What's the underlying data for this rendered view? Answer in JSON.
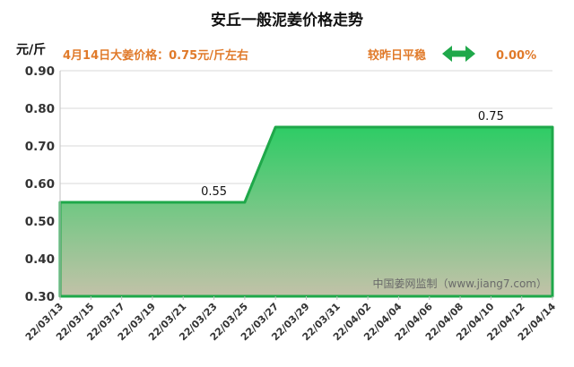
{
  "chart_data": {
    "type": "area",
    "title": "安丘一般泥姜价格走势",
    "ylabel": "元/斤",
    "xlabel": "",
    "info_left": "4月14日大姜价格：0.75元/斤左右",
    "info_right_label": "较昨日平稳",
    "info_right_value": "0.00%",
    "watermark": "中国姜网监制（www.jiang7.com）",
    "ylim": [
      0.3,
      0.9
    ],
    "yticks": [
      "0.30",
      "0.40",
      "0.50",
      "0.60",
      "0.70",
      "0.80",
      "0.90"
    ],
    "x_ticks": [
      "22/03/13",
      "22/03/15",
      "22/03/17",
      "22/03/19",
      "22/03/21",
      "22/03/23",
      "22/03/25",
      "22/03/27",
      "22/03/29",
      "22/03/31",
      "22/04/02",
      "22/04/04",
      "22/04/06",
      "22/04/08",
      "22/04/10",
      "22/04/12",
      "22/04/14"
    ],
    "x": [
      "22/03/13",
      "22/03/25",
      "22/03/27",
      "22/04/14"
    ],
    "values": [
      0.55,
      0.55,
      0.75,
      0.75
    ],
    "annotations": [
      {
        "x": "22/03/23",
        "y": 0.55,
        "text": "0.55"
      },
      {
        "x": "22/04/10",
        "y": 0.75,
        "text": "0.75"
      }
    ],
    "colors": {
      "line": "#1fa84a",
      "fill_top": "#2ecc65",
      "fill_bottom": "#c2c2a8",
      "info": "#e07a2a",
      "arrow": "#1fa84a"
    }
  }
}
